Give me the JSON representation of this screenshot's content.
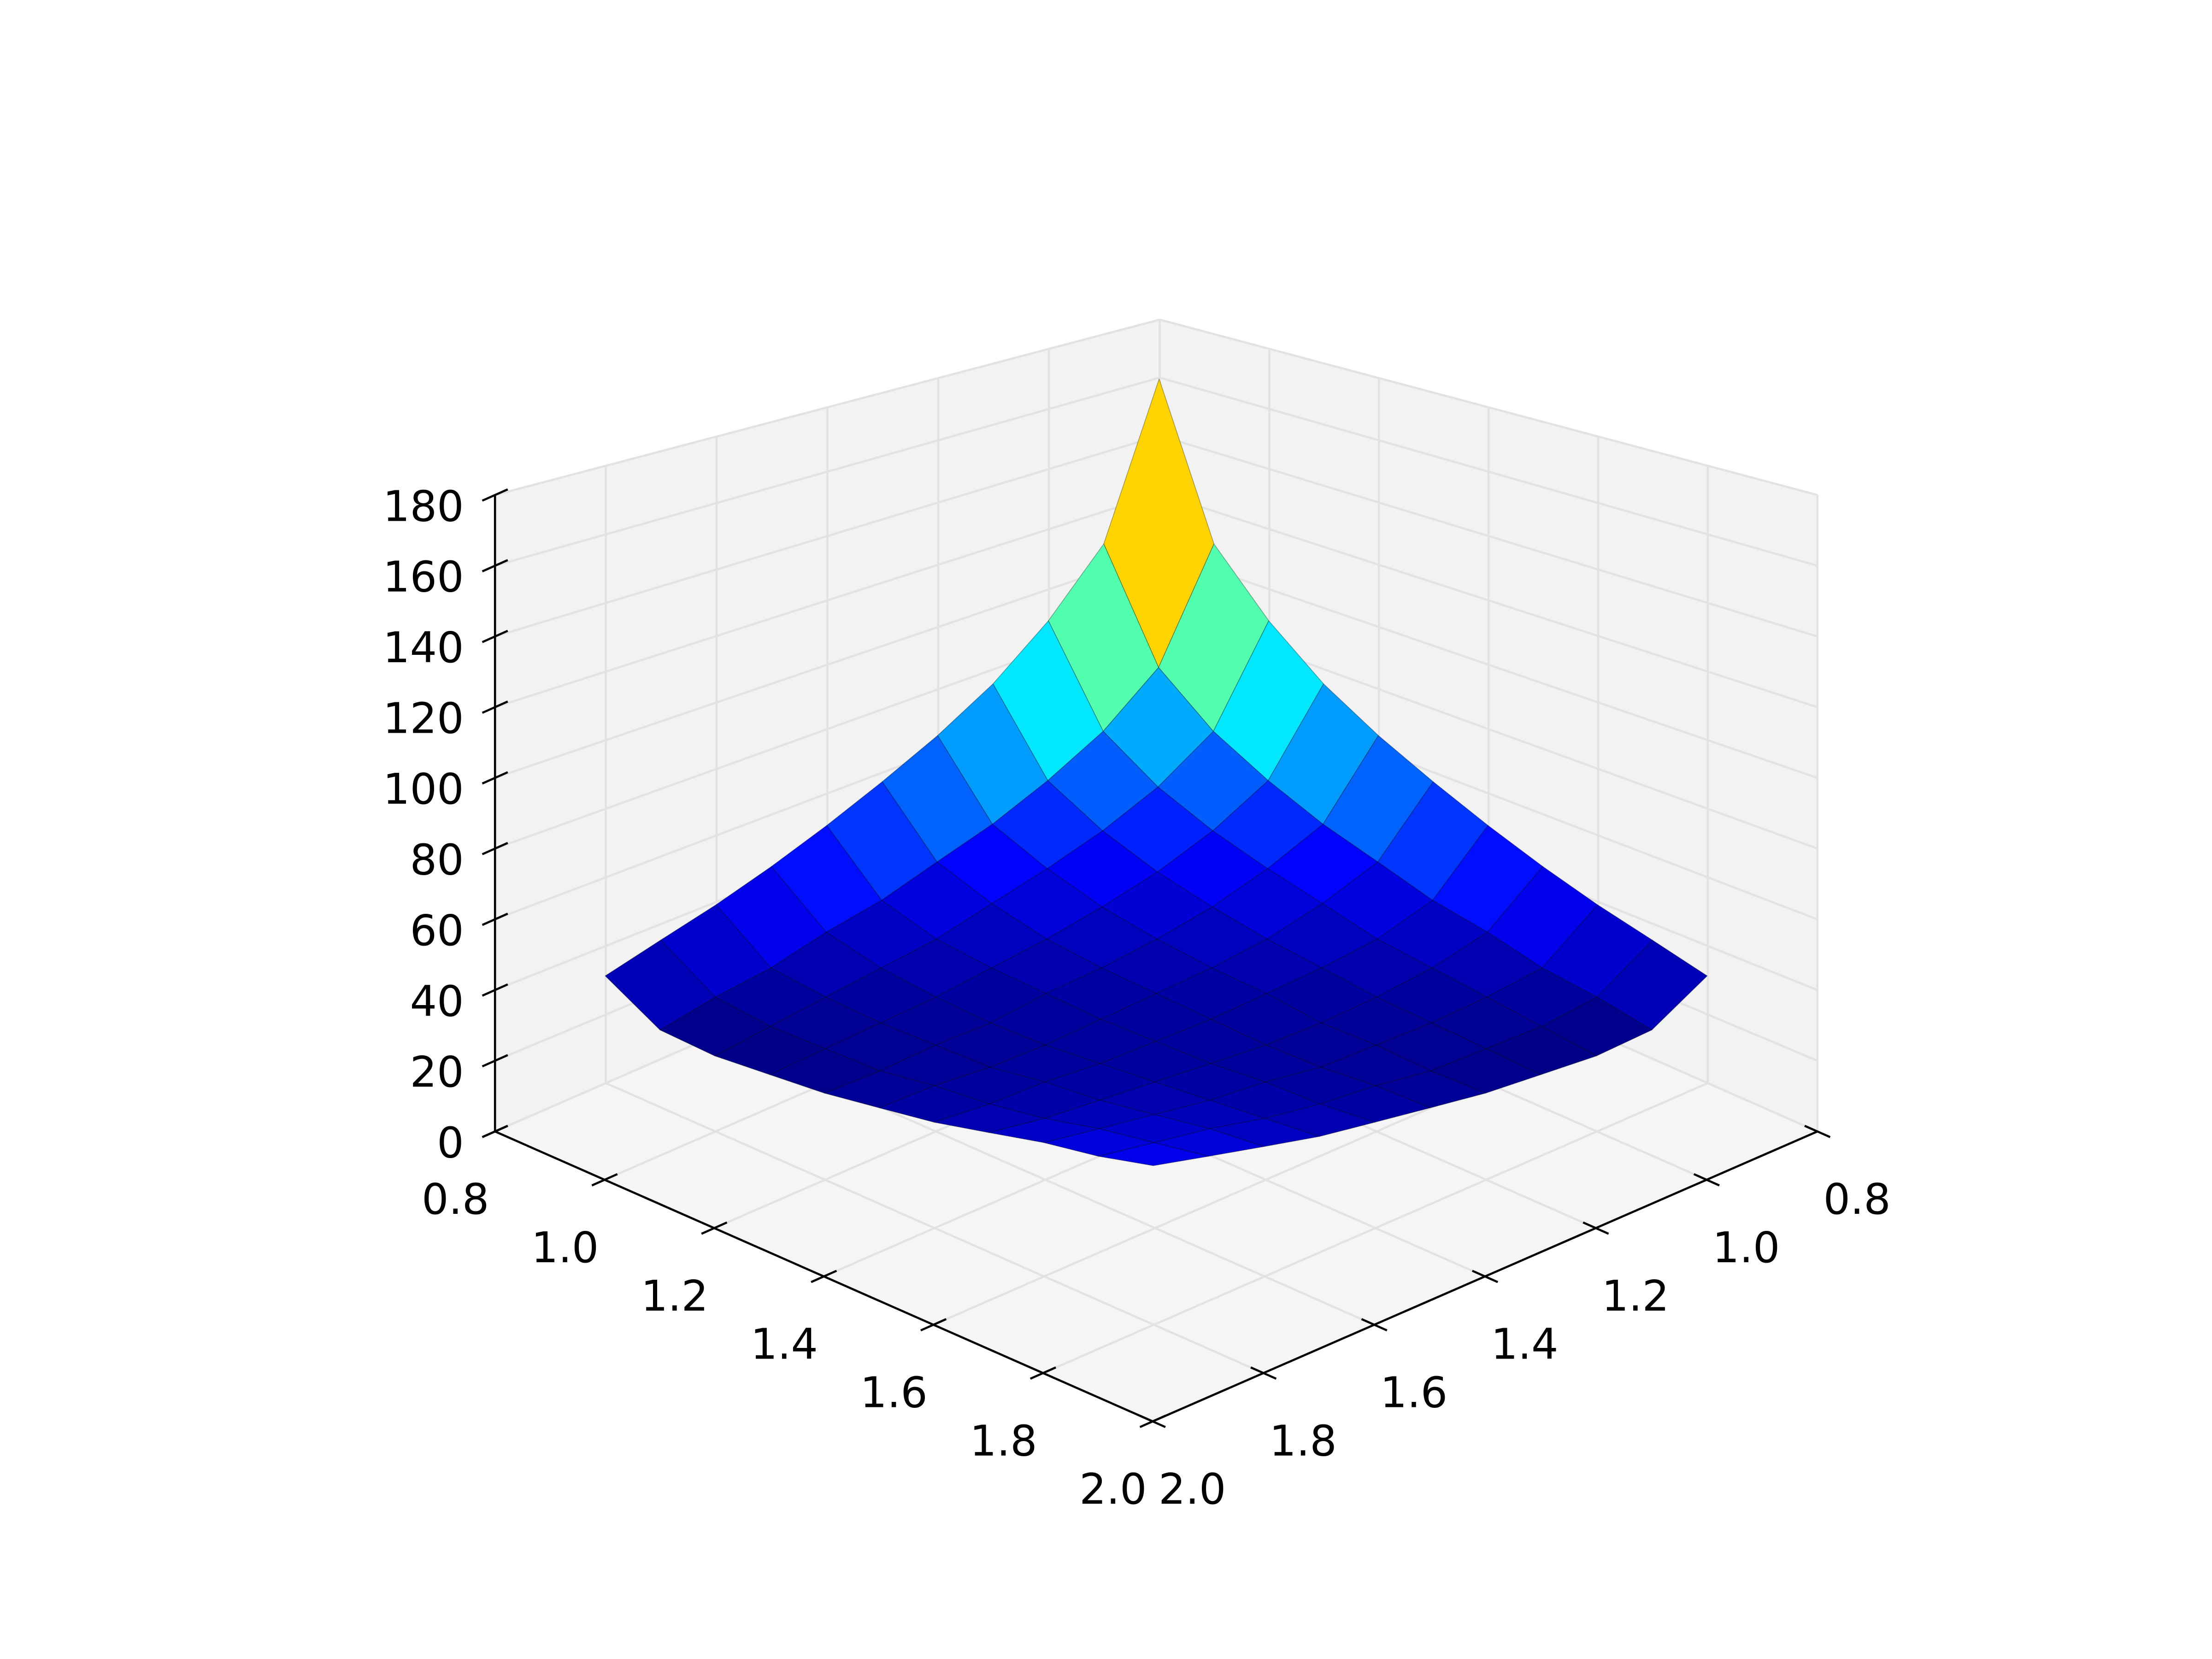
{
  "chart_data": {
    "type": "surface",
    "x": [
      0.9,
      1.0,
      1.1,
      1.2,
      1.3,
      1.4,
      1.5,
      1.6,
      1.7,
      1.8,
      1.9
    ],
    "y": [
      0.9,
      1.0,
      1.1,
      1.2,
      1.3,
      1.4,
      1.5,
      1.6,
      1.7,
      1.8,
      1.9
    ],
    "z": [
      [
        170,
        121,
        102,
        88,
        78,
        70,
        63,
        57,
        52,
        48,
        44
      ],
      [
        121,
        87,
        73,
        64,
        57,
        52,
        47,
        44,
        40,
        38,
        35
      ],
      [
        102,
        73,
        62,
        55,
        50,
        46,
        42,
        40,
        38,
        36,
        34
      ],
      [
        88,
        64,
        55,
        49,
        45,
        42,
        40,
        38,
        37,
        36,
        35
      ],
      [
        78,
        57,
        50,
        45,
        42,
        40,
        39,
        37,
        37,
        36,
        36
      ],
      [
        70,
        52,
        46,
        42,
        40,
        39,
        38,
        37,
        37,
        38,
        38
      ],
      [
        63,
        47,
        42,
        40,
        39,
        38,
        38,
        38,
        39,
        39,
        40
      ],
      [
        57,
        44,
        40,
        38,
        37,
        37,
        38,
        39,
        40,
        41,
        43
      ],
      [
        52,
        40,
        38,
        37,
        37,
        37,
        39,
        40,
        42,
        44,
        46
      ],
      [
        48,
        38,
        36,
        36,
        36,
        38,
        39,
        41,
        44,
        46,
        48
      ],
      [
        44,
        35,
        34,
        35,
        36,
        38,
        40,
        42,
        45,
        48,
        51
      ]
    ],
    "colormap": "jet",
    "xlim": [
      0.8,
      2.0
    ],
    "ylim": [
      0.8,
      2.0
    ],
    "zlim": [
      0,
      180
    ],
    "xticks": [
      0.8,
      {
        "value": 1,
        "label": "1.0"
      },
      1.2,
      1.4,
      1.6,
      1.8,
      {
        "value": 2,
        "label": "2.0"
      }
    ],
    "yticks": [
      0.8,
      {
        "value": 1,
        "label": "1.0"
      },
      1.2,
      1.4,
      1.6,
      1.8,
      {
        "value": 2,
        "label": "2.0"
      }
    ],
    "zticks": [
      0,
      20,
      40,
      60,
      80,
      100,
      120,
      140,
      160,
      180
    ],
    "grid": true
  }
}
